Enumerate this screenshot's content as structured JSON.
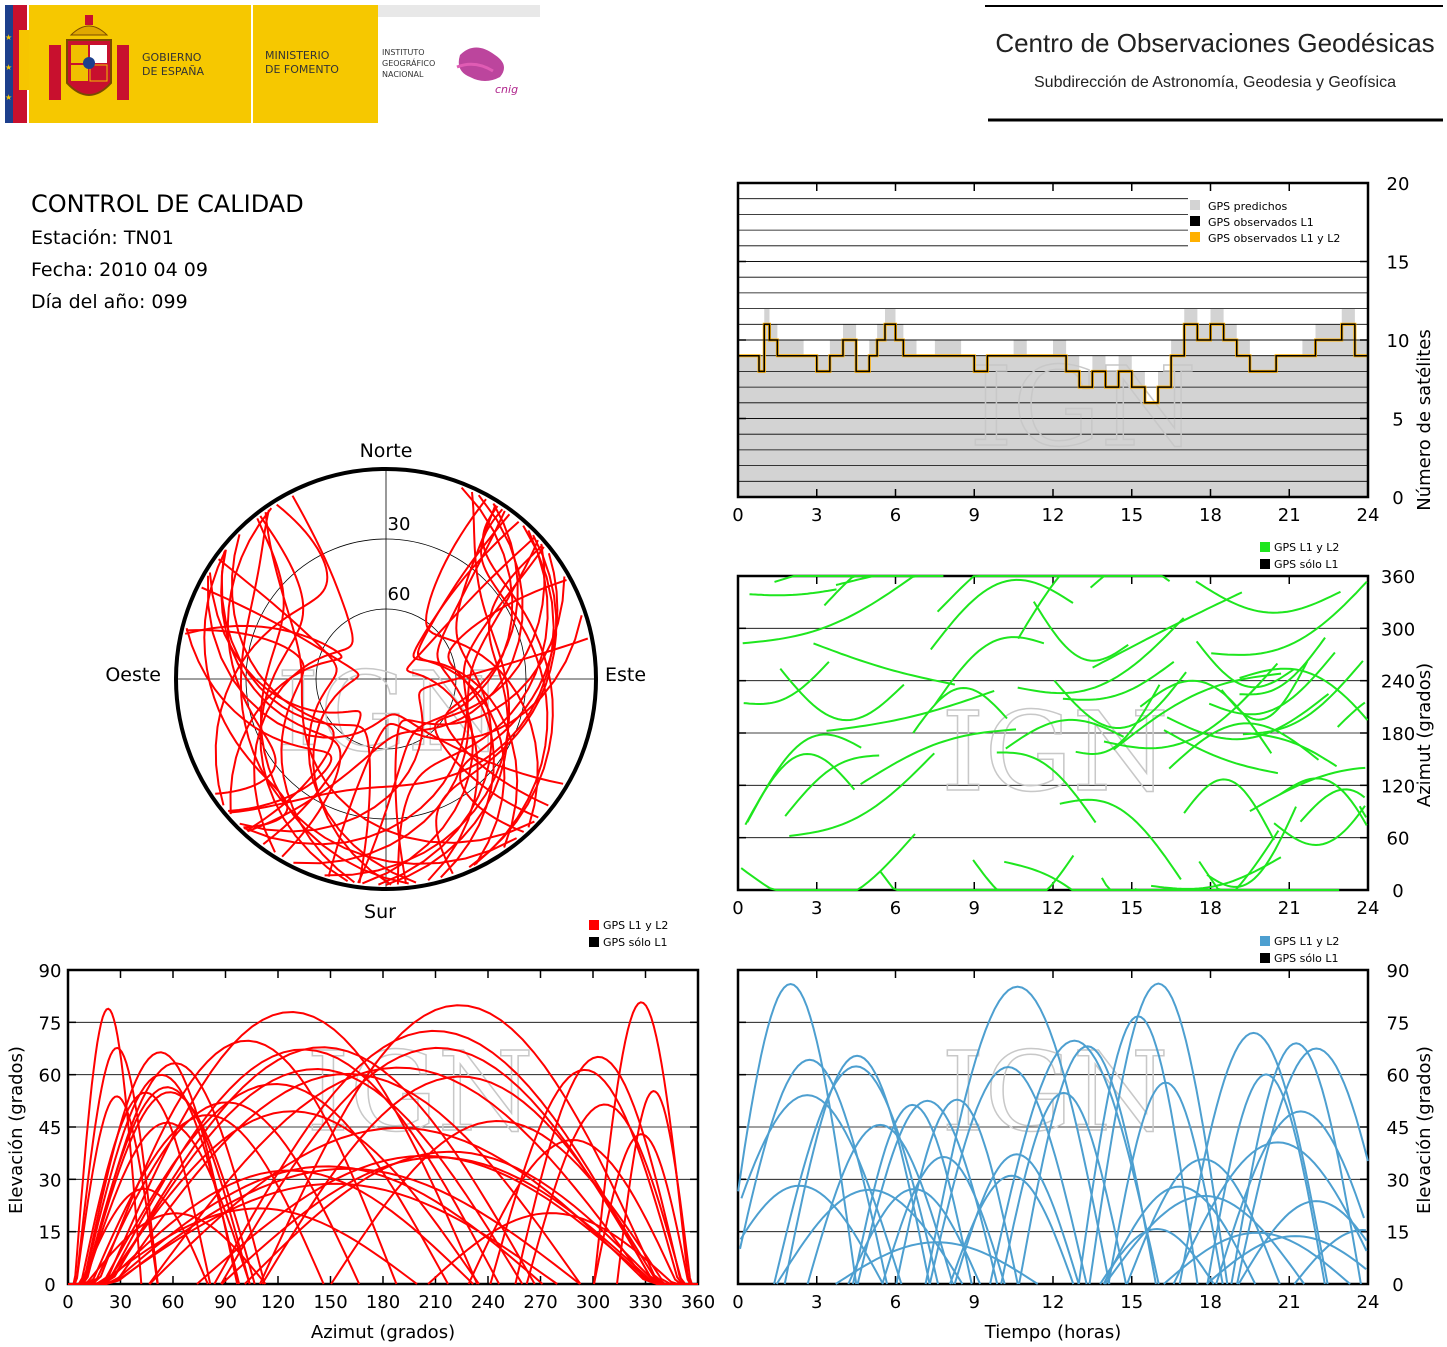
{
  "header": {
    "gov_line1": "GOBIERNO",
    "gov_line2": "DE ESPAÑA",
    "ministry_line1": "MINISTERIO",
    "ministry_line2": "DE FOMENTO",
    "ign_line1": "INSTITUTO",
    "ign_line2": "GEOGRÁFICO",
    "ign_line3": "NACIONAL",
    "cnig": "cnig",
    "center_title": "Centro de Observaciones Geodésicas",
    "center_subtitle": "Subdirección de Astronomía, Geodesia y Geofísica"
  },
  "info": {
    "title": "CONTROL DE CALIDAD",
    "station": "Estación: TN01",
    "date": "Fecha: 2010 04 09",
    "doy": "Día del año: 099"
  },
  "watermark": "IGN",
  "colors": {
    "predicted": "#d3d3d3",
    "observed_l1": "#000000",
    "observed_l1l2": "#ffb000",
    "azimuth": "#1ee61e",
    "skyplot": "#ff0000",
    "elevation_time": "#4d9fd0"
  },
  "chart_data": [
    {
      "id": "satellites",
      "type": "area",
      "ylabel": "Número de satélites",
      "ylim": [
        0,
        20
      ],
      "xlim": [
        0,
        24
      ],
      "xticks": [
        0,
        3,
        6,
        9,
        12,
        15,
        18,
        21,
        24
      ],
      "yticks": [
        0,
        5,
        10,
        15,
        20
      ],
      "grid": true,
      "legend_position": "top-right",
      "x": [
        0,
        0.8,
        1.0,
        1.2,
        1.5,
        2.0,
        2.5,
        3.0,
        3.5,
        4.0,
        4.5,
        5.0,
        5.3,
        5.6,
        6.0,
        6.3,
        6.8,
        7.5,
        8.0,
        8.5,
        9.0,
        9.5,
        10.0,
        10.5,
        11.0,
        11.5,
        12.0,
        12.5,
        13.0,
        13.5,
        14.0,
        14.5,
        15.0,
        15.5,
        16.0,
        16.5,
        17.0,
        17.5,
        18.0,
        18.5,
        19.0,
        19.5,
        20.0,
        20.5,
        21.0,
        21.5,
        22.0,
        22.5,
        23.0,
        23.5,
        24.0
      ],
      "series": [
        {
          "name": "GPS predichos",
          "values": [
            9,
            9,
            12,
            11,
            10,
            10,
            9,
            9,
            10,
            11,
            9,
            10,
            11,
            12,
            11,
            10,
            9,
            10,
            10,
            9,
            9,
            9,
            9,
            10,
            9,
            9,
            10,
            9,
            8,
            9,
            8,
            9,
            8,
            6,
            8,
            10,
            12,
            11,
            12,
            11,
            10,
            9,
            9,
            9,
            9,
            10,
            11,
            11,
            12,
            10,
            9
          ]
        },
        {
          "name": "GPS observados L1",
          "values": [
            9,
            8,
            11,
            10,
            9,
            9,
            9,
            8,
            9,
            10,
            8,
            9,
            10,
            11,
            10,
            9,
            9,
            9,
            9,
            9,
            8,
            9,
            9,
            9,
            9,
            9,
            9,
            8,
            7,
            8,
            7,
            8,
            7,
            6,
            7,
            9,
            11,
            10,
            11,
            10,
            9,
            8,
            8,
            9,
            9,
            9,
            10,
            10,
            11,
            9,
            9
          ]
        },
        {
          "name": "GPS observados L1 y L2",
          "values": [
            9,
            8,
            11,
            10,
            9,
            9,
            9,
            8,
            9,
            10,
            8,
            9,
            10,
            11,
            10,
            9,
            9,
            9,
            9,
            9,
            8,
            9,
            9,
            9,
            9,
            9,
            9,
            8,
            7,
            8,
            7,
            8,
            7,
            6,
            7,
            9,
            11,
            10,
            11,
            10,
            9,
            8,
            8,
            9,
            9,
            9,
            10,
            10,
            11,
            9,
            9
          ]
        }
      ]
    },
    {
      "id": "skyplot",
      "type": "scatter",
      "labels": {
        "north": "Norte",
        "south": "Sur",
        "east": "Este",
        "west": "Oeste"
      },
      "rings": [
        30,
        60
      ],
      "series": [
        {
          "name": "GPS L1 y L2"
        }
      ]
    },
    {
      "id": "azimuth_time",
      "type": "scatter",
      "ylabel": "Azimut (grados)",
      "xlim": [
        0,
        24
      ],
      "ylim": [
        0,
        360
      ],
      "xticks": [
        0,
        3,
        6,
        9,
        12,
        15,
        18,
        21,
        24
      ],
      "yticks": [
        0,
        60,
        120,
        180,
        240,
        300,
        360
      ],
      "grid": true,
      "legend_position": "top-right",
      "series": [
        {
          "name": "GPS L1 y L2"
        },
        {
          "name": "GPS sólo L1"
        }
      ]
    },
    {
      "id": "elevation_azimuth",
      "type": "scatter",
      "xlabel": "Azimut (grados)",
      "ylabel": "Elevación (grados)",
      "xlim": [
        0,
        360
      ],
      "ylim": [
        0,
        90
      ],
      "xticks": [
        0,
        30,
        60,
        90,
        120,
        150,
        180,
        210,
        240,
        270,
        300,
        330,
        360
      ],
      "yticks": [
        0,
        15,
        30,
        45,
        60,
        75,
        90
      ],
      "grid": true,
      "legend_position": "top-right",
      "series": [
        {
          "name": "GPS L1 y L2"
        },
        {
          "name": "GPS sólo L1"
        }
      ]
    },
    {
      "id": "elevation_time",
      "type": "line",
      "xlabel": "Tiempo (horas)",
      "ylabel": "Elevación (grados)",
      "xlim": [
        0,
        24
      ],
      "ylim": [
        0,
        90
      ],
      "xticks": [
        0,
        3,
        6,
        9,
        12,
        15,
        18,
        21,
        24
      ],
      "yticks": [
        0,
        15,
        30,
        45,
        60,
        75,
        90
      ],
      "grid": true,
      "legend_position": "top-right",
      "series": [
        {
          "name": "GPS L1 y L2"
        },
        {
          "name": "GPS sólo L1"
        }
      ]
    }
  ]
}
